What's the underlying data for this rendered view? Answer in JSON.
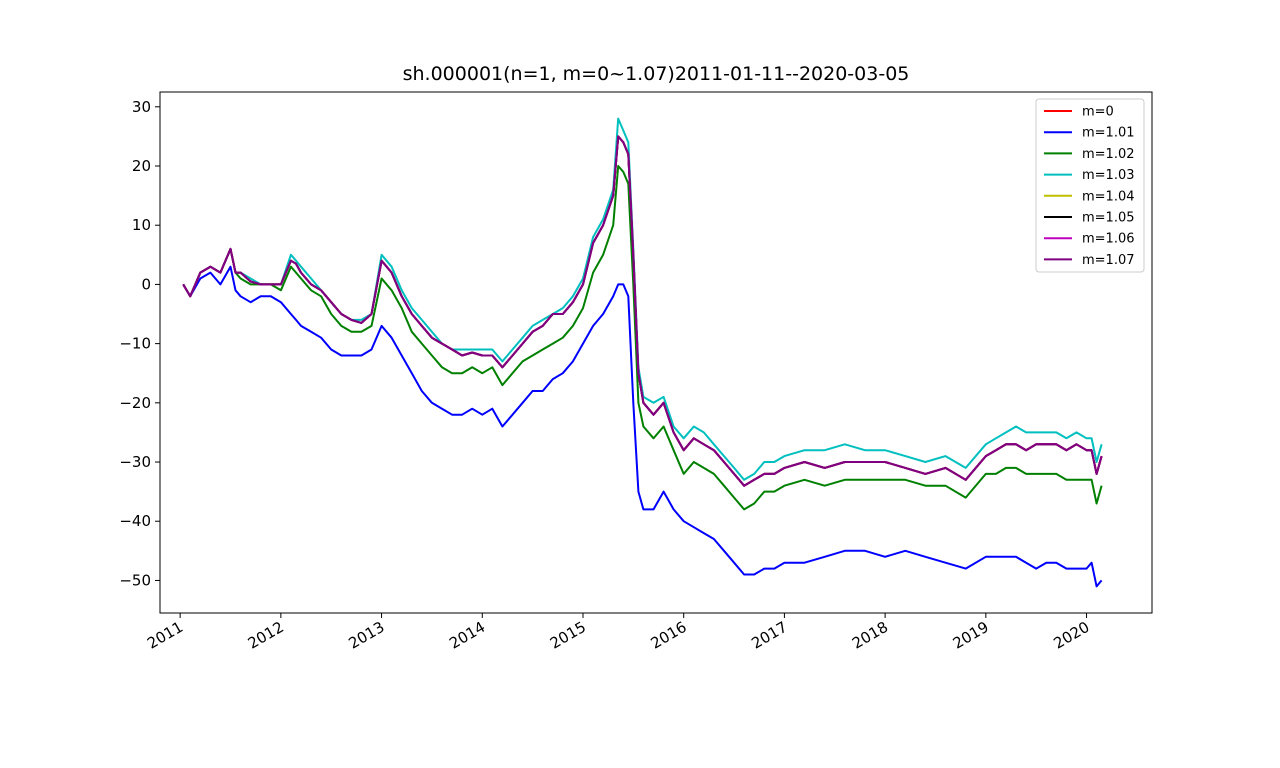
{
  "chart_data": {
    "type": "line",
    "title": "sh.000001(n=1, m=0~1.07)2011-01-11--2020-03-05",
    "xlabel": "",
    "ylabel": "",
    "xlim": [
      2010.8,
      2020.65
    ],
    "ylim": [
      -55.5,
      32.5
    ],
    "x_ticks": [
      2011,
      2012,
      2013,
      2014,
      2015,
      2016,
      2017,
      2018,
      2019,
      2020
    ],
    "x_tick_labels": [
      "2011",
      "2012",
      "2013",
      "2014",
      "2015",
      "2016",
      "2017",
      "2018",
      "2019",
      "2020"
    ],
    "y_ticks": [
      30,
      20,
      10,
      0,
      -10,
      -20,
      -30,
      -40,
      -50
    ],
    "y_tick_labels": [
      "30",
      "20",
      "10",
      "0",
      "−10",
      "−20",
      "−30",
      "−40",
      "−50"
    ],
    "grid": false,
    "legend_position": "top-right",
    "x": [
      2011.03,
      2011.1,
      2011.2,
      2011.3,
      2011.4,
      2011.5,
      2011.55,
      2011.6,
      2011.7,
      2011.8,
      2011.9,
      2012.0,
      2012.1,
      2012.15,
      2012.2,
      2012.3,
      2012.4,
      2012.5,
      2012.6,
      2012.7,
      2012.8,
      2012.9,
      2013.0,
      2013.1,
      2013.2,
      2013.3,
      2013.4,
      2013.5,
      2013.6,
      2013.7,
      2013.8,
      2013.9,
      2014.0,
      2014.1,
      2014.2,
      2014.3,
      2014.4,
      2014.5,
      2014.6,
      2014.7,
      2014.8,
      2014.9,
      2015.0,
      2015.1,
      2015.2,
      2015.3,
      2015.35,
      2015.4,
      2015.45,
      2015.5,
      2015.55,
      2015.6,
      2015.7,
      2015.8,
      2015.9,
      2016.0,
      2016.1,
      2016.2,
      2016.3,
      2016.4,
      2016.5,
      2016.6,
      2016.7,
      2016.8,
      2016.9,
      2017.0,
      2017.2,
      2017.4,
      2017.6,
      2017.8,
      2018.0,
      2018.2,
      2018.4,
      2018.6,
      2018.8,
      2019.0,
      2019.1,
      2019.2,
      2019.3,
      2019.4,
      2019.5,
      2019.6,
      2019.7,
      2019.8,
      2019.9,
      2020.0,
      2020.05,
      2020.1,
      2020.15
    ],
    "series": [
      {
        "name": "m=0",
        "color": "#ff0000",
        "values": [
          0,
          -2,
          2,
          3,
          2,
          6,
          2,
          2,
          0.5,
          0,
          0,
          0,
          4,
          3.5,
          2,
          0,
          -1,
          -3,
          -5,
          -6,
          -6.5,
          -5,
          4,
          2,
          -2,
          -5,
          -7,
          -9,
          -10,
          -11,
          -12,
          -11.5,
          -12,
          -12,
          -14,
          -12,
          -10,
          -8,
          -7,
          -5,
          -5,
          -3,
          0,
          7,
          10,
          15,
          25,
          24,
          22,
          5,
          -15,
          -20,
          -22,
          -20,
          -25,
          -28,
          -26,
          -27,
          -28,
          -30,
          -32,
          -34,
          -33,
          -32,
          -32,
          -31,
          -30,
          -31,
          -30,
          -30,
          -30,
          -31,
          -32,
          -31,
          -33,
          -29,
          -28,
          -27,
          -27,
          -28,
          -27,
          -27,
          -27,
          -28,
          -27,
          -28,
          -28,
          -32,
          -29
        ]
      },
      {
        "name": "m=1.01",
        "color": "#0000ff",
        "values": [
          0,
          -2,
          1,
          2,
          0,
          3,
          -1,
          -2,
          -3,
          -2,
          -2,
          -3,
          -5,
          -6,
          -7,
          -8,
          -9,
          -11,
          -12,
          -12,
          -12,
          -11,
          -7,
          -9,
          -12,
          -15,
          -18,
          -20,
          -21,
          -22,
          -22,
          -21,
          -22,
          -21,
          -24,
          -22,
          -20,
          -18,
          -18,
          -16,
          -15,
          -13,
          -10,
          -7,
          -5,
          -2,
          0,
          0,
          -2,
          -20,
          -35,
          -38,
          -38,
          -35,
          -38,
          -40,
          -41,
          -42,
          -43,
          -45,
          -47,
          -49,
          -49,
          -48,
          -48,
          -47,
          -47,
          -46,
          -45,
          -45,
          -46,
          -45,
          -46,
          -47,
          -48,
          -46,
          -46,
          -46,
          -46,
          -47,
          -48,
          -47,
          -47,
          -48,
          -48,
          -48,
          -47,
          -51,
          -50
        ]
      },
      {
        "name": "m=1.02",
        "color": "#008000",
        "values": [
          0,
          -2,
          2,
          3,
          2,
          6,
          2,
          1,
          0,
          0,
          0,
          -1,
          3,
          2,
          1,
          -1,
          -2,
          -5,
          -7,
          -8,
          -8,
          -7,
          1,
          -1,
          -4,
          -8,
          -10,
          -12,
          -14,
          -15,
          -15,
          -14,
          -15,
          -14,
          -17,
          -15,
          -13,
          -12,
          -11,
          -10,
          -9,
          -7,
          -4,
          2,
          5,
          10,
          20,
          19,
          17,
          0,
          -20,
          -24,
          -26,
          -24,
          -28,
          -32,
          -30,
          -31,
          -32,
          -34,
          -36,
          -38,
          -37,
          -35,
          -35,
          -34,
          -33,
          -34,
          -33,
          -33,
          -33,
          -33,
          -34,
          -34,
          -36,
          -32,
          -32,
          -31,
          -31,
          -32,
          -32,
          -32,
          -32,
          -33,
          -33,
          -33,
          -33,
          -37,
          -34
        ]
      },
      {
        "name": "m=1.03",
        "color": "#00bfbf",
        "values": [
          0,
          -2,
          2,
          3,
          2,
          6,
          2,
          2,
          1,
          0,
          0,
          0,
          5,
          4,
          3,
          1,
          -1,
          -3,
          -5,
          -6,
          -6,
          -5,
          5,
          3,
          -1,
          -4,
          -6,
          -8,
          -10,
          -11,
          -11,
          -11,
          -11,
          -11,
          -13,
          -11,
          -9,
          -7,
          -6,
          -5,
          -4,
          -2,
          1,
          8,
          11,
          16,
          28,
          26,
          24,
          6,
          -14,
          -19,
          -20,
          -19,
          -24,
          -26,
          -24,
          -25,
          -27,
          -29,
          -31,
          -33,
          -32,
          -30,
          -30,
          -29,
          -28,
          -28,
          -27,
          -28,
          -28,
          -29,
          -30,
          -29,
          -31,
          -27,
          -26,
          -25,
          -24,
          -25,
          -25,
          -25,
          -25,
          -26,
          -25,
          -26,
          -26,
          -30,
          -27
        ]
      },
      {
        "name": "m=1.04",
        "color": "#bfbf00",
        "values": [
          0,
          -2,
          2,
          3,
          2,
          6,
          2,
          2,
          0.5,
          0,
          0,
          0,
          4,
          3.5,
          2,
          0,
          -1,
          -3,
          -5,
          -6,
          -6.5,
          -5,
          4,
          2,
          -2,
          -5,
          -7,
          -9,
          -10,
          -11,
          -12,
          -11.5,
          -12,
          -12,
          -14,
          -12,
          -10,
          -8,
          -7,
          -5,
          -5,
          -3,
          0,
          7,
          10,
          15,
          25,
          24,
          22,
          5,
          -15,
          -20,
          -22,
          -20,
          -25,
          -28,
          -26,
          -27,
          -28,
          -30,
          -32,
          -34,
          -33,
          -32,
          -32,
          -31,
          -30,
          -31,
          -30,
          -30,
          -30,
          -31,
          -32,
          -31,
          -33,
          -29,
          -28,
          -27,
          -27,
          -28,
          -27,
          -27,
          -27,
          -28,
          -27,
          -28,
          -28,
          -32,
          -29
        ]
      },
      {
        "name": "m=1.05",
        "color": "#000000",
        "values": [
          0,
          -2,
          2,
          3,
          2,
          6,
          2,
          2,
          0.5,
          0,
          0,
          0,
          4,
          3.5,
          2,
          0,
          -1,
          -3,
          -5,
          -6,
          -6.5,
          -5,
          4,
          2,
          -2,
          -5,
          -7,
          -9,
          -10,
          -11,
          -12,
          -11.5,
          -12,
          -12,
          -14,
          -12,
          -10,
          -8,
          -7,
          -5,
          -5,
          -3,
          0,
          7,
          10,
          15,
          25,
          24,
          22,
          5,
          -15,
          -20,
          -22,
          -20,
          -25,
          -28,
          -26,
          -27,
          -28,
          -30,
          -32,
          -34,
          -33,
          -32,
          -32,
          -31,
          -30,
          -31,
          -30,
          -30,
          -30,
          -31,
          -32,
          -31,
          -33,
          -29,
          -28,
          -27,
          -27,
          -28,
          -27,
          -27,
          -27,
          -28,
          -27,
          -28,
          -28,
          -32,
          -29
        ]
      },
      {
        "name": "m=1.06",
        "color": "#bf00bf",
        "values": [
          0,
          -2,
          2,
          3,
          2,
          6,
          2,
          2,
          0.5,
          0,
          0,
          0,
          4,
          3.5,
          2,
          0,
          -1,
          -3,
          -5,
          -6,
          -6.5,
          -5,
          4,
          2,
          -2,
          -5,
          -7,
          -9,
          -10,
          -11,
          -12,
          -11.5,
          -12,
          -12,
          -14,
          -12,
          -10,
          -8,
          -7,
          -5,
          -5,
          -3,
          0,
          7,
          10,
          15,
          25,
          24,
          22,
          5,
          -15,
          -20,
          -22,
          -20,
          -25,
          -28,
          -26,
          -27,
          -28,
          -30,
          -32,
          -34,
          -33,
          -32,
          -32,
          -31,
          -30,
          -31,
          -30,
          -30,
          -30,
          -31,
          -32,
          -31,
          -33,
          -29,
          -28,
          -27,
          -27,
          -28,
          -27,
          -27,
          -27,
          -28,
          -27,
          -28,
          -28,
          -32,
          -29
        ]
      },
      {
        "name": "m=1.07",
        "color": "#800080",
        "values": [
          0,
          -2,
          2,
          3,
          2,
          6,
          2,
          2,
          0.5,
          0,
          0,
          0,
          4,
          3.5,
          2,
          0,
          -1,
          -3,
          -5,
          -6,
          -6.5,
          -5,
          4,
          2,
          -2,
          -5,
          -7,
          -9,
          -10,
          -11,
          -12,
          -11.5,
          -12,
          -12,
          -14,
          -12,
          -10,
          -8,
          -7,
          -5,
          -5,
          -3,
          0,
          7,
          10,
          15,
          25,
          24,
          22,
          5,
          -15,
          -20,
          -22,
          -20,
          -25,
          -28,
          -26,
          -27,
          -28,
          -30,
          -32,
          -34,
          -33,
          -32,
          -32,
          -31,
          -30,
          -31,
          -30,
          -30,
          -30,
          -31,
          -32,
          -31,
          -33,
          -29,
          -28,
          -27,
          -27,
          -28,
          -27,
          -27,
          -27,
          -28,
          -27,
          -28,
          -28,
          -32,
          -29
        ]
      }
    ]
  }
}
